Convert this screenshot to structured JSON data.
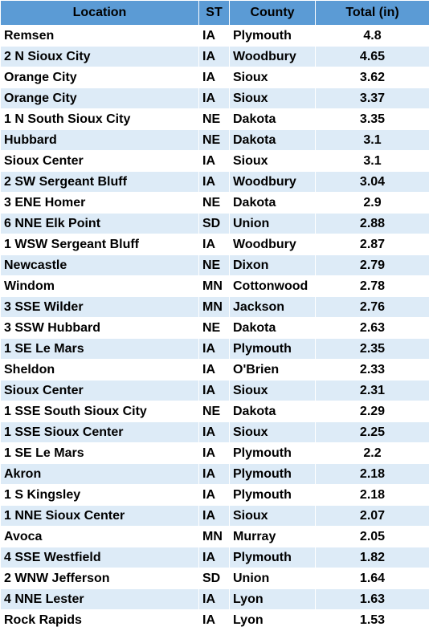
{
  "table": {
    "header": [
      "Location",
      "ST",
      "County",
      "Total (in)"
    ],
    "rows": [
      [
        "Remsen",
        "IA",
        "Plymouth",
        4.8
      ],
      [
        "2 N Sioux City",
        "IA",
        "Woodbury",
        4.65
      ],
      [
        "Orange City",
        "IA",
        "Sioux",
        3.62
      ],
      [
        "Orange City",
        "IA",
        "Sioux",
        3.37
      ],
      [
        "1 N South Sioux City",
        "NE",
        "Dakota",
        3.35
      ],
      [
        "Hubbard",
        "NE",
        "Dakota",
        3.1
      ],
      [
        "Sioux Center",
        "IA",
        "Sioux",
        3.1
      ],
      [
        "2 SW Sergeant Bluff",
        "IA",
        "Woodbury",
        3.04
      ],
      [
        "3 ENE Homer",
        "NE",
        "Dakota",
        2.9
      ],
      [
        "6 NNE Elk Point",
        "SD",
        "Union",
        2.88
      ],
      [
        "1 WSW Sergeant Bluff",
        "IA",
        "Woodbury",
        2.87
      ],
      [
        "Newcastle",
        "NE",
        "Dixon",
        2.79
      ],
      [
        "Windom",
        "MN",
        "Cottonwood",
        2.78
      ],
      [
        "3 SSE Wilder",
        "MN",
        "Jackson",
        2.76
      ],
      [
        "3 SSW Hubbard",
        "NE",
        "Dakota",
        2.63
      ],
      [
        "1 SE Le Mars",
        "IA",
        "Plymouth",
        2.35
      ],
      [
        "Sheldon",
        "IA",
        "O'Brien",
        2.33
      ],
      [
        "Sioux Center",
        "IA",
        "Sioux",
        2.31
      ],
      [
        "1 SSE South Sioux City",
        "NE",
        "Dakota",
        2.29
      ],
      [
        "1 SSE Sioux Center",
        "IA",
        "Sioux",
        2.25
      ],
      [
        "1 SE Le Mars",
        "IA",
        "Plymouth",
        2.2
      ],
      [
        "Akron",
        "IA",
        "Plymouth",
        2.18
      ],
      [
        "1 S Kingsley",
        "IA",
        "Plymouth",
        2.18
      ],
      [
        "1 NNE Sioux Center",
        "IA",
        "Sioux",
        2.07
      ],
      [
        "Avoca",
        "MN",
        "Murray",
        2.05
      ],
      [
        "4 SSE Westfield",
        "IA",
        "Plymouth",
        1.82
      ],
      [
        "2 WNW Jefferson",
        "SD",
        "Union",
        1.64
      ],
      [
        "4 NNE Lester",
        "IA",
        "Lyon",
        1.63
      ],
      [
        "Rock Rapids",
        "IA",
        "Lyon",
        1.53
      ]
    ]
  }
}
